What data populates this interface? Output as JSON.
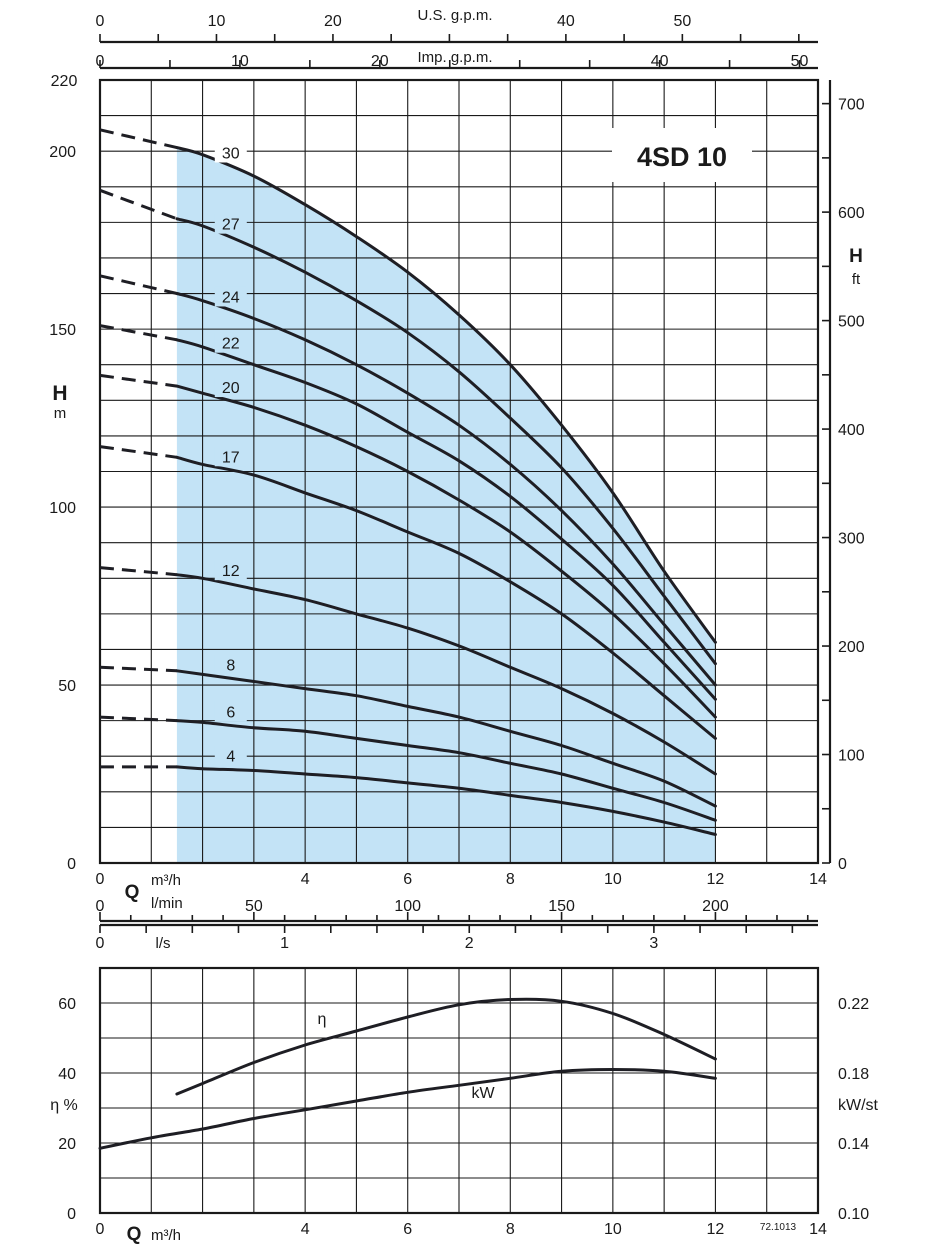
{
  "chart_data": [
    {
      "type": "line",
      "title": "4SD 10",
      "colors": {
        "operating_range": "#c3e3f6",
        "curves": "#1e1e24"
      },
      "x": {
        "label": "Q",
        "unit": "m³/h",
        "range": [
          0,
          14
        ],
        "ticks": [
          0,
          4,
          6,
          8,
          10,
          12,
          14
        ]
      },
      "y": {
        "label": "H",
        "unit": "m",
        "range": [
          0,
          220
        ],
        "ticks": [
          0,
          50,
          100,
          150,
          200
        ]
      },
      "y_right": {
        "label": "H",
        "unit": "ft",
        "range": [
          0,
          721.78
        ],
        "ticks": [
          0,
          100,
          200,
          300,
          400,
          500,
          600,
          700
        ]
      },
      "secondary_x_axes": [
        {
          "label": "U.S. g.p.m.",
          "ticks": [
            0,
            10,
            20,
            40,
            50
          ]
        },
        {
          "label": "Imp. g.p.m.",
          "ticks": [
            0,
            10,
            20,
            40,
            50
          ]
        },
        {
          "label": "l/min",
          "ticks": [
            0,
            50,
            100,
            150,
            200
          ]
        },
        {
          "label": "l/s",
          "ticks": [
            0,
            1,
            2,
            3
          ]
        }
      ],
      "operating_range_q": [
        1.5,
        12
      ],
      "series": [
        {
          "name": "30",
          "x": [
            0,
            1.5,
            2,
            3,
            4,
            5,
            6,
            7,
            8,
            9,
            10,
            11,
            12
          ],
          "y": [
            206,
            201,
            199,
            193,
            185,
            176,
            166,
            154,
            140,
            123,
            104,
            82,
            62
          ]
        },
        {
          "name": "27",
          "x": [
            0,
            1.5,
            2,
            3,
            4,
            5,
            6,
            7,
            8,
            9,
            10,
            11,
            12
          ],
          "y": [
            189,
            181,
            179,
            173,
            166,
            158,
            149,
            138,
            125,
            111,
            94,
            75,
            56
          ]
        },
        {
          "name": "24",
          "x": [
            0,
            1.5,
            2,
            3,
            4,
            5,
            6,
            7,
            8,
            9,
            10,
            11,
            12
          ],
          "y": [
            165,
            160,
            158,
            153,
            147,
            140,
            132,
            123,
            112,
            99,
            84,
            67,
            50
          ]
        },
        {
          "name": "22",
          "x": [
            0,
            1.5,
            2,
            3,
            4,
            5,
            6,
            7,
            8,
            9,
            10,
            11,
            12
          ],
          "y": [
            151,
            147,
            145,
            140,
            135,
            129,
            121,
            113,
            103,
            91,
            78,
            62,
            46
          ]
        },
        {
          "name": "20",
          "x": [
            0,
            1.5,
            2,
            3,
            4,
            5,
            6,
            7,
            8,
            9,
            10,
            11,
            12
          ],
          "y": [
            137,
            134,
            132,
            128,
            123,
            117,
            110,
            102,
            93,
            82,
            70,
            56,
            41
          ]
        },
        {
          "name": "17",
          "x": [
            0,
            1.5,
            2,
            3,
            4,
            5,
            6,
            7,
            8,
            9,
            10,
            11,
            12
          ],
          "y": [
            117,
            114,
            112,
            109,
            104,
            99,
            93,
            87,
            79,
            70,
            59,
            47,
            35
          ]
        },
        {
          "name": "12",
          "x": [
            0,
            1.5,
            2,
            3,
            4,
            5,
            6,
            7,
            8,
            9,
            10,
            11,
            12
          ],
          "y": [
            83,
            81,
            80,
            77,
            74,
            70,
            66,
            61,
            55,
            49,
            42,
            34,
            25
          ]
        },
        {
          "name": "8",
          "x": [
            0,
            1.5,
            2,
            3,
            4,
            5,
            6,
            7,
            8,
            9,
            10,
            11,
            12
          ],
          "y": [
            55,
            54,
            53,
            51,
            49,
            47,
            44,
            41,
            37,
            33,
            28,
            23,
            16
          ]
        },
        {
          "name": "6",
          "x": [
            0,
            1.5,
            2,
            3,
            4,
            5,
            6,
            7,
            8,
            9,
            10,
            11,
            12
          ],
          "y": [
            41,
            40,
            39.5,
            38,
            37,
            35,
            33,
            31,
            28,
            25,
            21,
            17,
            12
          ]
        },
        {
          "name": "4",
          "x": [
            0,
            1.5,
            2,
            3,
            4,
            5,
            6,
            7,
            8,
            9,
            10,
            11,
            12
          ],
          "y": [
            27,
            27,
            26.5,
            26,
            25,
            24,
            22.5,
            21,
            19,
            17,
            14.5,
            11.5,
            8
          ]
        }
      ],
      "dashed_below_q": 1.5
    },
    {
      "type": "line",
      "x": {
        "label": "Q",
        "unit": "m³/h",
        "range": [
          0,
          14
        ],
        "ticks": [
          0,
          4,
          6,
          8,
          10,
          12,
          14
        ]
      },
      "y": {
        "label": "η %",
        "range": [
          0,
          70
        ],
        "ticks": [
          0,
          20,
          40,
          60
        ]
      },
      "y_right": {
        "label": "kW/st",
        "range": [
          0.1,
          0.24
        ],
        "ticks": [
          "0.10",
          "0.14",
          "0.18",
          "0.22"
        ]
      },
      "footnote": "72.1013",
      "series": [
        {
          "name": "η",
          "axis": "left",
          "x": [
            1.5,
            2,
            3,
            4,
            5,
            6,
            7,
            8,
            9,
            10,
            11,
            12
          ],
          "y": [
            34,
            37,
            43,
            48,
            52,
            56,
            59.5,
            61,
            60.5,
            57,
            51,
            44
          ]
        },
        {
          "name": "kW",
          "axis": "right",
          "x": [
            0,
            1,
            2,
            3,
            4,
            5,
            6,
            7,
            8,
            9,
            10,
            11,
            12
          ],
          "y": [
            0.137,
            0.143,
            0.148,
            0.154,
            0.159,
            0.164,
            0.169,
            0.173,
            0.177,
            0.181,
            0.182,
            0.181,
            0.177
          ]
        }
      ]
    }
  ]
}
